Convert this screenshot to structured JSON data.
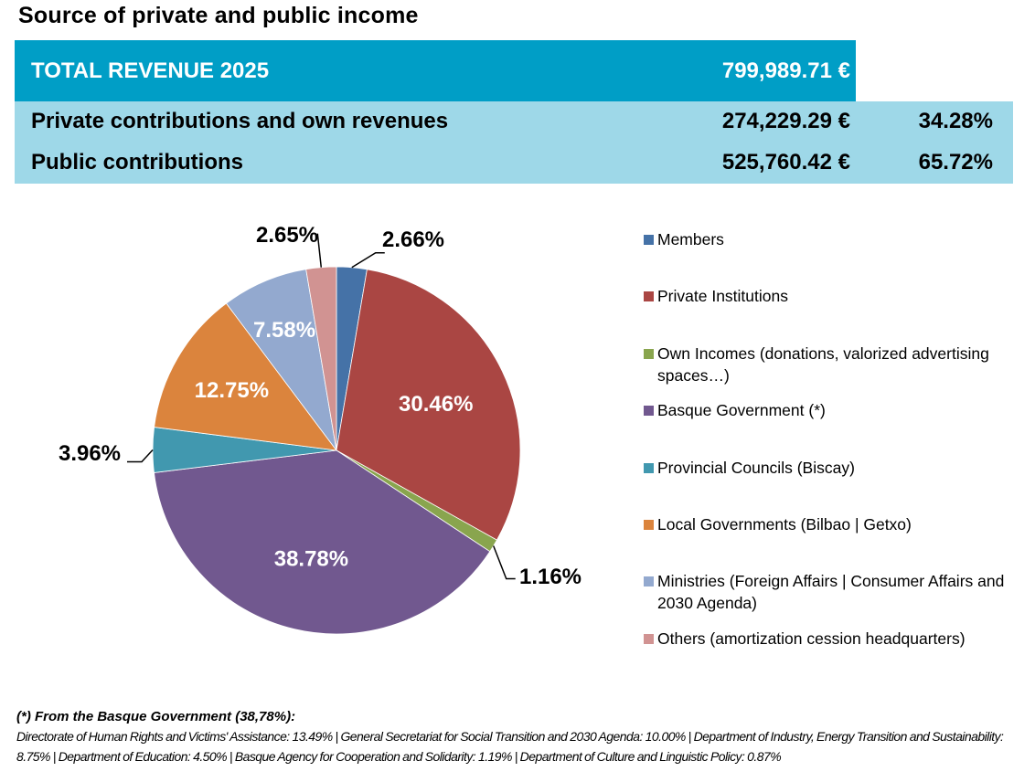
{
  "title": "Source of private and public income",
  "summary": {
    "total_label": "TOTAL REVENUE 2025",
    "total_value": "799,989.71 €",
    "rows": [
      {
        "label": "Private contributions and own revenues",
        "value": "274,229.29 €",
        "percent": "34.28%"
      },
      {
        "label": "Public contributions",
        "value": "525,760.42 €",
        "percent": "65.72%"
      }
    ],
    "colors": {
      "total_bg": "#009ec6",
      "rows_bg": "#9ed8e8"
    }
  },
  "chart_data": {
    "type": "pie",
    "title": "Source of private and public income",
    "legend_position": "right",
    "start_angle_deg": 0,
    "direction": "clockwise",
    "slices": [
      {
        "label": "Members",
        "value": 2.66,
        "display": "2.66%",
        "color": "#4572a7",
        "label_style": "outside"
      },
      {
        "label": "Private Institutions",
        "value": 30.46,
        "display": "30.46%",
        "color": "#aa4643",
        "label_style": "inside"
      },
      {
        "label": "Own Incomes (donations, valorized advertising spaces…)",
        "value": 1.16,
        "display": "1.16%",
        "color": "#89a54e",
        "label_style": "outside"
      },
      {
        "label": "Basque Government (*)",
        "value": 38.78,
        "display": "38.78%",
        "color": "#71588f",
        "label_style": "inside"
      },
      {
        "label": "Provincial Councils (Biscay)",
        "value": 3.96,
        "display": "3.96%",
        "color": "#4198af",
        "label_style": "outside"
      },
      {
        "label": "Local Governments (Bilbao | Getxo)",
        "value": 12.75,
        "display": "12.75%",
        "color": "#db843d",
        "label_style": "inside"
      },
      {
        "label": "Ministries (Foreign Affairs | Consumer Affairs and 2030 Agenda)",
        "value": 7.58,
        "display": "7.58%",
        "color": "#93a9cf",
        "label_style": "inside"
      },
      {
        "label": "Others (amortization cession headquarters)",
        "value": 2.65,
        "display": "2.65%",
        "color": "#d19392",
        "label_style": "outside"
      }
    ]
  },
  "footnote": {
    "heading": "(*) From the Basque Government (38,78%):",
    "body": "Directorate of Human Rights and Victims' Assistance: 13.49%  | General Secretariat for Social Transition and 2030 Agenda: 10.00% | Department of Industry, Energy Transition and Sustainability: 8.75% |  Department of  Education: 4.50%  |  Basque Agency for Cooperation and Solidarity: 1.19% |  Department of Culture and Linguistic Policy: 0.87%"
  }
}
